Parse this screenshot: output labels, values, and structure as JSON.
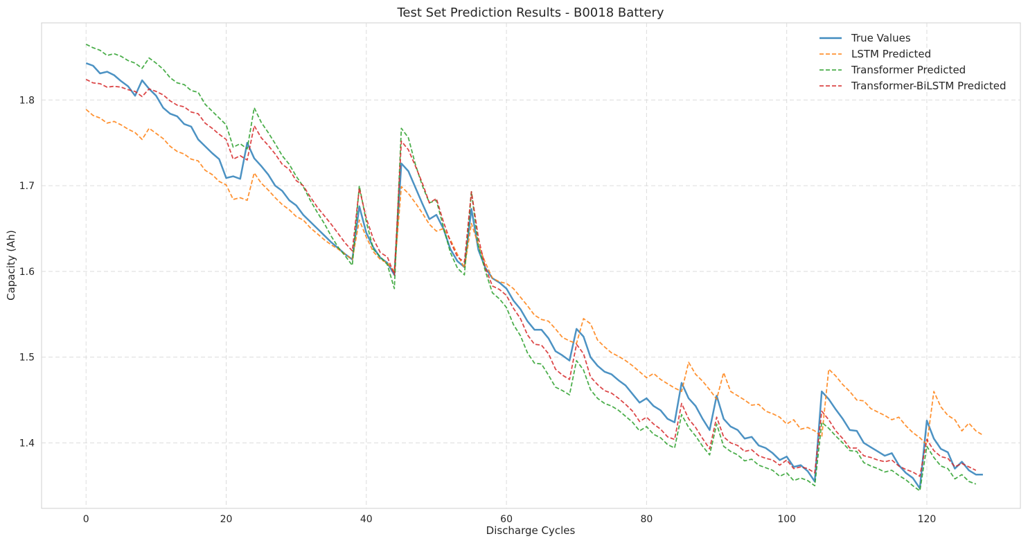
{
  "chart_data": {
    "type": "line",
    "title": "Test Set Prediction Results - B0018 Battery",
    "xlabel": "Discharge Cycles",
    "ylabel": "Capacity (Ah)",
    "xlim": [
      -6.35,
      133.35
    ],
    "ylim": [
      1.3236,
      1.89
    ],
    "xticks": [
      0,
      20,
      40,
      60,
      80,
      100,
      120
    ],
    "xtick_labels": [
      "0",
      "20",
      "40",
      "60",
      "80",
      "100",
      "120"
    ],
    "yticks": [
      1.4,
      1.5,
      1.6,
      1.7,
      1.8
    ],
    "ytick_labels": [
      "1.4",
      "1.5",
      "1.6",
      "1.7",
      "1.8"
    ],
    "grid": true,
    "legend_position": "top-right",
    "series": [
      {
        "name": "True Values",
        "color": "#1f77b4",
        "style": "solid",
        "values": [
          1.843,
          1.84,
          1.831,
          1.833,
          1.829,
          1.822,
          1.816,
          1.805,
          1.823,
          1.813,
          1.805,
          1.791,
          1.784,
          1.781,
          1.772,
          1.769,
          1.754,
          1.746,
          1.738,
          1.731,
          1.709,
          1.711,
          1.708,
          1.75,
          1.732,
          1.723,
          1.713,
          1.7,
          1.694,
          1.683,
          1.677,
          1.666,
          1.658,
          1.65,
          1.642,
          1.634,
          1.627,
          1.62,
          1.614,
          1.676,
          1.645,
          1.628,
          1.616,
          1.61,
          1.596,
          1.726,
          1.717,
          1.698,
          1.679,
          1.661,
          1.666,
          1.65,
          1.626,
          1.612,
          1.605,
          1.673,
          1.625,
          1.604,
          1.592,
          1.587,
          1.58,
          1.566,
          1.556,
          1.542,
          1.532,
          1.532,
          1.522,
          1.507,
          1.502,
          1.496,
          1.533,
          1.524,
          1.5,
          1.49,
          1.483,
          1.48,
          1.473,
          1.467,
          1.457,
          1.447,
          1.452,
          1.443,
          1.438,
          1.428,
          1.424,
          1.47,
          1.452,
          1.443,
          1.428,
          1.415,
          1.455,
          1.428,
          1.419,
          1.415,
          1.405,
          1.407,
          1.397,
          1.394,
          1.388,
          1.38,
          1.384,
          1.372,
          1.374,
          1.367,
          1.355,
          1.46,
          1.451,
          1.439,
          1.428,
          1.415,
          1.414,
          1.4,
          1.395,
          1.39,
          1.385,
          1.388,
          1.374,
          1.365,
          1.359,
          1.347,
          1.426,
          1.405,
          1.393,
          1.389,
          1.37,
          1.378,
          1.368,
          1.363,
          1.363
        ]
      },
      {
        "name": "LSTM Predicted",
        "color": "#ff7f0e",
        "style": "dashed",
        "values": [
          1.789,
          1.782,
          1.779,
          1.773,
          1.775,
          1.771,
          1.766,
          1.762,
          1.754,
          1.767,
          1.761,
          1.755,
          1.746,
          1.74,
          1.737,
          1.731,
          1.729,
          1.718,
          1.713,
          1.705,
          1.701,
          1.684,
          1.686,
          1.683,
          1.715,
          1.703,
          1.695,
          1.686,
          1.678,
          1.672,
          1.664,
          1.66,
          1.651,
          1.644,
          1.637,
          1.631,
          1.626,
          1.62,
          1.614,
          1.66,
          1.64,
          1.623,
          1.614,
          1.61,
          1.6,
          1.699,
          1.691,
          1.68,
          1.668,
          1.655,
          1.647,
          1.65,
          1.637,
          1.62,
          1.604,
          1.656,
          1.631,
          1.61,
          1.592,
          1.588,
          1.586,
          1.58,
          1.57,
          1.56,
          1.549,
          1.544,
          1.542,
          1.533,
          1.523,
          1.519,
          1.516,
          1.545,
          1.539,
          1.52,
          1.512,
          1.505,
          1.501,
          1.496,
          1.49,
          1.483,
          1.476,
          1.481,
          1.474,
          1.469,
          1.464,
          1.46,
          1.494,
          1.48,
          1.472,
          1.462,
          1.451,
          1.482,
          1.46,
          1.455,
          1.45,
          1.444,
          1.445,
          1.437,
          1.434,
          1.43,
          1.422,
          1.427,
          1.416,
          1.418,
          1.414,
          1.407,
          1.486,
          1.478,
          1.468,
          1.46,
          1.45,
          1.449,
          1.44,
          1.436,
          1.432,
          1.427,
          1.43,
          1.42,
          1.412,
          1.406,
          1.398,
          1.46,
          1.442,
          1.432,
          1.427,
          1.414,
          1.423,
          1.414,
          1.409
        ]
      },
      {
        "name": "Transformer Predicted",
        "color": "#2ca02c",
        "style": "dashed",
        "values": [
          1.865,
          1.861,
          1.858,
          1.852,
          1.854,
          1.851,
          1.846,
          1.843,
          1.837,
          1.849,
          1.843,
          1.836,
          1.826,
          1.82,
          1.818,
          1.811,
          1.809,
          1.795,
          1.787,
          1.779,
          1.771,
          1.745,
          1.749,
          1.743,
          1.791,
          1.774,
          1.762,
          1.749,
          1.735,
          1.725,
          1.711,
          1.699,
          1.683,
          1.669,
          1.656,
          1.641,
          1.628,
          1.618,
          1.607,
          1.7,
          1.658,
          1.626,
          1.617,
          1.608,
          1.58,
          1.767,
          1.756,
          1.725,
          1.7,
          1.68,
          1.683,
          1.652,
          1.622,
          1.604,
          1.596,
          1.693,
          1.63,
          1.6,
          1.575,
          1.568,
          1.558,
          1.538,
          1.525,
          1.505,
          1.493,
          1.492,
          1.479,
          1.465,
          1.461,
          1.456,
          1.496,
          1.485,
          1.462,
          1.452,
          1.446,
          1.443,
          1.438,
          1.431,
          1.424,
          1.414,
          1.419,
          1.41,
          1.406,
          1.398,
          1.394,
          1.433,
          1.418,
          1.408,
          1.396,
          1.386,
          1.422,
          1.396,
          1.39,
          1.386,
          1.379,
          1.381,
          1.374,
          1.371,
          1.368,
          1.361,
          1.365,
          1.356,
          1.359,
          1.356,
          1.35,
          1.424,
          1.417,
          1.408,
          1.4,
          1.391,
          1.39,
          1.377,
          1.373,
          1.37,
          1.366,
          1.368,
          1.362,
          1.357,
          1.35,
          1.344,
          1.396,
          1.383,
          1.373,
          1.37,
          1.358,
          1.363,
          1.355,
          1.352
        ]
      },
      {
        "name": "Transformer-BiLSTM Predicted",
        "color": "#d62728",
        "style": "dashed",
        "values": [
          1.824,
          1.82,
          1.819,
          1.815,
          1.816,
          1.815,
          1.812,
          1.81,
          1.804,
          1.813,
          1.81,
          1.806,
          1.799,
          1.794,
          1.792,
          1.786,
          1.784,
          1.773,
          1.767,
          1.76,
          1.754,
          1.731,
          1.735,
          1.73,
          1.77,
          1.756,
          1.747,
          1.737,
          1.725,
          1.719,
          1.706,
          1.7,
          1.687,
          1.675,
          1.665,
          1.655,
          1.644,
          1.633,
          1.624,
          1.697,
          1.662,
          1.638,
          1.622,
          1.617,
          1.596,
          1.752,
          1.742,
          1.723,
          1.703,
          1.68,
          1.685,
          1.658,
          1.635,
          1.617,
          1.611,
          1.693,
          1.639,
          1.604,
          1.583,
          1.579,
          1.572,
          1.557,
          1.545,
          1.526,
          1.515,
          1.514,
          1.504,
          1.486,
          1.479,
          1.474,
          1.515,
          1.504,
          1.477,
          1.468,
          1.461,
          1.458,
          1.452,
          1.445,
          1.437,
          1.425,
          1.43,
          1.422,
          1.416,
          1.407,
          1.404,
          1.446,
          1.428,
          1.418,
          1.405,
          1.393,
          1.43,
          1.407,
          1.4,
          1.397,
          1.39,
          1.392,
          1.385,
          1.382,
          1.38,
          1.374,
          1.38,
          1.37,
          1.372,
          1.37,
          1.365,
          1.437,
          1.427,
          1.414,
          1.405,
          1.394,
          1.394,
          1.385,
          1.383,
          1.38,
          1.378,
          1.38,
          1.373,
          1.369,
          1.366,
          1.361,
          1.404,
          1.391,
          1.384,
          1.382,
          1.372,
          1.376,
          1.372,
          1.368
        ]
      }
    ]
  }
}
